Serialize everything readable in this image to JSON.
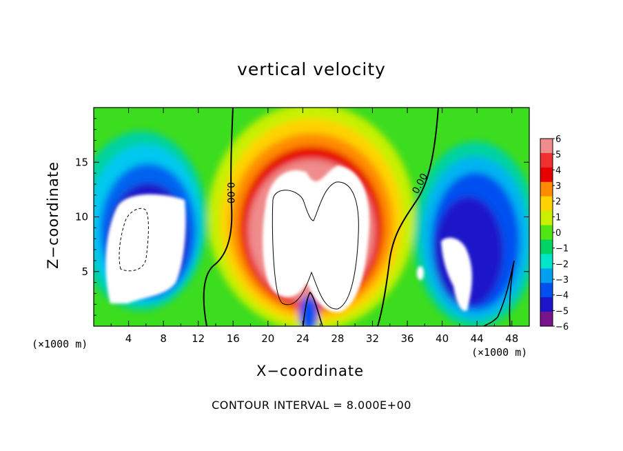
{
  "chart_data": {
    "type": "heatmap",
    "title": "vertical velocity",
    "xlabel": "X−coordinate",
    "ylabel": "Z−coordinate",
    "x_unit_label": "(×1000 m)",
    "xlim": [
      0,
      50
    ],
    "ylim": [
      0,
      20
    ],
    "x_ticks": [
      4,
      8,
      12,
      16,
      20,
      24,
      28,
      32,
      36,
      40,
      44,
      48
    ],
    "y_ticks": [
      5,
      10,
      15
    ],
    "colorbar": {
      "levels": [
        6,
        5,
        4,
        3,
        2,
        1,
        0,
        -1,
        -2,
        -3,
        -4,
        -5,
        -6
      ],
      "labels": [
        "6",
        "5",
        "4",
        "3",
        "2",
        "1",
        "0",
        "−1",
        "−2",
        "−3",
        "−4",
        "−5",
        "−6"
      ],
      "colors": [
        "#f08c8c",
        "#f03030",
        "#e60000",
        "#ff8c00",
        "#ffd200",
        "#c8f000",
        "#50e614",
        "#00d264",
        "#00e6c8",
        "#00a0f0",
        "#0050f0",
        "#1e14c8",
        "#78148c"
      ]
    },
    "contour_labels": [
      "0.00",
      "0.00"
    ],
    "contour_interval_text": "CONTOUR INTERVAL = 8.000E+00",
    "features": [
      {
        "kind": "downdraft",
        "x": 6,
        "z": 8,
        "peak": -8
      },
      {
        "kind": "updraft",
        "x": 27,
        "z": 9,
        "peak": 14
      },
      {
        "kind": "downdraft",
        "x": 41,
        "z": 7,
        "peak": -8
      },
      {
        "kind": "downdraft",
        "x": 24.5,
        "z": 1,
        "peak": -4
      }
    ]
  }
}
